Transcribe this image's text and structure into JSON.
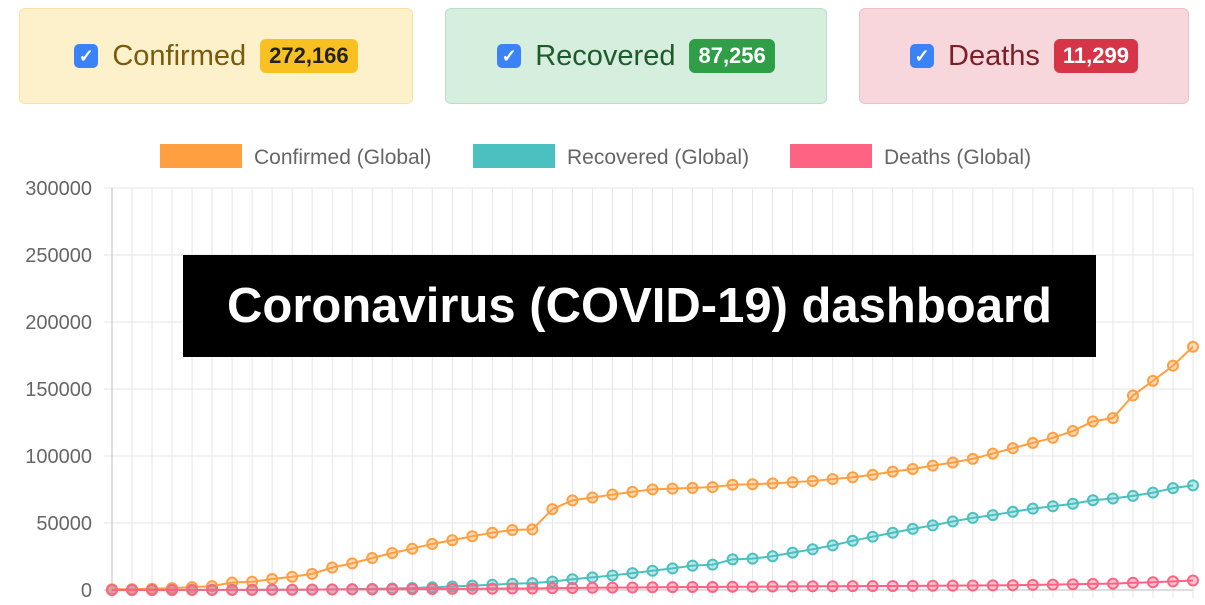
{
  "cards": {
    "confirmed": {
      "label": "Confirmed",
      "count": "272,166",
      "checked": true
    },
    "recovered": {
      "label": "Recovered",
      "count": "87,256",
      "checked": true
    },
    "deaths": {
      "label": "Deaths",
      "count": "11,299",
      "checked": true
    }
  },
  "overlay_title": "Coronavirus (COVID-19) dashboard",
  "colors": {
    "confirmed": "#ff9f40",
    "recovered": "#4bc0c0",
    "deaths": "#ff6384"
  },
  "chart_data": {
    "type": "line",
    "ylim": [
      0,
      300000
    ],
    "yticks": [
      0,
      50000,
      100000,
      150000,
      200000,
      250000,
      300000
    ],
    "legend_position": "top",
    "grid": true,
    "series": [
      {
        "name": "Confirmed (Global)",
        "color": "#ff9f40",
        "values": [
          555,
          653,
          941,
          1434,
          2118,
          2927,
          5578,
          6166,
          8234,
          9927,
          12038,
          16787,
          19881,
          23892,
          27635,
          30817,
          34391,
          37120,
          40150,
          42762,
          44802,
          45221,
          60368,
          66885,
          69030,
          71224,
          73258,
          75136,
          75639,
          76197,
          76819,
          78572,
          78958,
          79561,
          80406,
          81388,
          82746,
          84112,
          86011,
          88369,
          90306,
          92840,
          95120,
          97886,
          101801,
          105847,
          109821,
          113590,
          118620,
          125875,
          128343,
          145193,
          156097,
          167449,
          181546
        ]
      },
      {
        "name": "Recovered (Global)",
        "color": "#4bc0c0",
        "values": [
          28,
          30,
          36,
          39,
          52,
          61,
          107,
          126,
          143,
          222,
          284,
          472,
          623,
          852,
          1124,
          1487,
          2011,
          2616,
          3244,
          3946,
          4683,
          5150,
          6295,
          8058,
          9395,
          10865,
          12583,
          14352,
          16121,
          18177,
          18890,
          22886,
          23394,
          25227,
          27905,
          30384,
          33277,
          36711,
          39782,
          42716,
          45602,
          48228,
          51170,
          53796,
          55866,
          58359,
          60694,
          62494,
          64404,
          67003,
          68324,
          70251,
          72624,
          76034,
          78088
        ]
      },
      {
        "name": "Deaths (Global)",
        "color": "#ff6384",
        "values": [
          17,
          18,
          26,
          42,
          56,
          82,
          131,
          133,
          171,
          213,
          259,
          362,
          426,
          492,
          564,
          634,
          719,
          806,
          906,
          1013,
          1113,
          1118,
          1371,
          1523,
          1666,
          1770,
          1868,
          2007,
          2122,
          2247,
          2251,
          2458,
          2469,
          2629,
          2708,
          2770,
          2814,
          2872,
          2941,
          2996,
          3085,
          3160,
          3254,
          3348,
          3460,
          3558,
          3802,
          3988,
          4262,
          4615,
          4720,
          5404,
          5819,
          6440,
          7126
        ]
      }
    ]
  }
}
